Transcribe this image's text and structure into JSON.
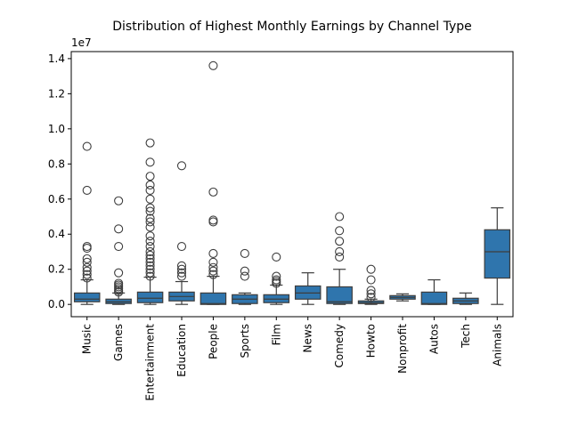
{
  "chart_data": {
    "type": "box",
    "title": "Distribution of Highest Monthly Earnings by Channel Type",
    "xlabel": "",
    "ylabel": "",
    "y_offset_label": "1e7",
    "ylim": [
      -0.07,
      1.44
    ],
    "yticks": [
      0.0,
      0.2,
      0.4,
      0.6,
      0.8,
      1.0,
      1.2,
      1.4
    ],
    "ytick_labels": [
      "0.0",
      "0.2",
      "0.4",
      "0.6",
      "0.8",
      "1.0",
      "1.2",
      "1.4"
    ],
    "box_color": "#2f75ad",
    "grid": false,
    "categories": [
      "Music",
      "Games",
      "Entertainment",
      "Education",
      "People",
      "Sports",
      "Film",
      "News",
      "Comedy",
      "Howto",
      "Nonprofit",
      "Autos",
      "Tech",
      "Animals"
    ],
    "boxes": [
      {
        "category": "Music",
        "whislo": 0.0,
        "q1": 0.015,
        "med": 0.03,
        "q3": 0.065,
        "whishi": 0.14,
        "fliers": [
          0.15,
          0.17,
          0.19,
          0.21,
          0.24,
          0.26,
          0.32,
          0.33,
          0.65,
          0.9
        ]
      },
      {
        "category": "Games",
        "whislo": 0.0,
        "q1": 0.005,
        "med": 0.015,
        "q3": 0.03,
        "whishi": 0.065,
        "fliers": [
          0.07,
          0.08,
          0.09,
          0.1,
          0.11,
          0.12,
          0.18,
          0.33,
          0.43,
          0.59
        ]
      },
      {
        "category": "Entertainment",
        "whislo": 0.0,
        "q1": 0.01,
        "med": 0.035,
        "q3": 0.07,
        "whishi": 0.155,
        "fliers": [
          0.16,
          0.18,
          0.2,
          0.22,
          0.24,
          0.26,
          0.28,
          0.3,
          0.33,
          0.36,
          0.39,
          0.44,
          0.47,
          0.49,
          0.53,
          0.55,
          0.6,
          0.65,
          0.68,
          0.73,
          0.81,
          0.92
        ]
      },
      {
        "category": "Education",
        "whislo": 0.0,
        "q1": 0.02,
        "med": 0.045,
        "q3": 0.07,
        "whishi": 0.13,
        "fliers": [
          0.16,
          0.18,
          0.2,
          0.22,
          0.33,
          0.79
        ]
      },
      {
        "category": "People",
        "whislo": 0.0,
        "q1": 0.0,
        "med": 0.005,
        "q3": 0.065,
        "whishi": 0.16,
        "fliers": [
          0.17,
          0.19,
          0.21,
          0.24,
          0.29,
          0.47,
          0.48,
          0.64,
          1.36
        ]
      },
      {
        "category": "Sports",
        "whislo": 0.0,
        "q1": 0.005,
        "med": 0.03,
        "q3": 0.055,
        "whishi": 0.065,
        "fliers": [
          0.16,
          0.19,
          0.29
        ]
      },
      {
        "category": "Film",
        "whislo": 0.0,
        "q1": 0.01,
        "med": 0.03,
        "q3": 0.055,
        "whishi": 0.11,
        "fliers": [
          0.12,
          0.13,
          0.14,
          0.16,
          0.27
        ]
      },
      {
        "category": "News",
        "whislo": 0.0,
        "q1": 0.03,
        "med": 0.065,
        "q3": 0.105,
        "whishi": 0.18,
        "fliers": []
      },
      {
        "category": "Comedy",
        "whislo": 0.0,
        "q1": 0.005,
        "med": 0.015,
        "q3": 0.1,
        "whishi": 0.2,
        "fliers": [
          0.27,
          0.3,
          0.36,
          0.42,
          0.5
        ]
      },
      {
        "category": "Howto",
        "whislo": 0.0,
        "q1": 0.005,
        "med": 0.01,
        "q3": 0.02,
        "whishi": 0.03,
        "fliers": [
          0.04,
          0.06,
          0.08,
          0.14,
          0.2
        ]
      },
      {
        "category": "Nonprofit",
        "whislo": 0.02,
        "q1": 0.03,
        "med": 0.04,
        "q3": 0.05,
        "whishi": 0.06,
        "fliers": []
      },
      {
        "category": "Autos",
        "whislo": 0.0,
        "q1": 0.0,
        "med": 0.005,
        "q3": 0.07,
        "whishi": 0.14,
        "fliers": []
      },
      {
        "category": "Tech",
        "whislo": 0.0,
        "q1": 0.005,
        "med": 0.02,
        "q3": 0.035,
        "whishi": 0.065,
        "fliers": []
      },
      {
        "category": "Animals",
        "whislo": 0.0,
        "q1": 0.15,
        "med": 0.3,
        "q3": 0.425,
        "whishi": 0.55,
        "fliers": []
      }
    ]
  }
}
